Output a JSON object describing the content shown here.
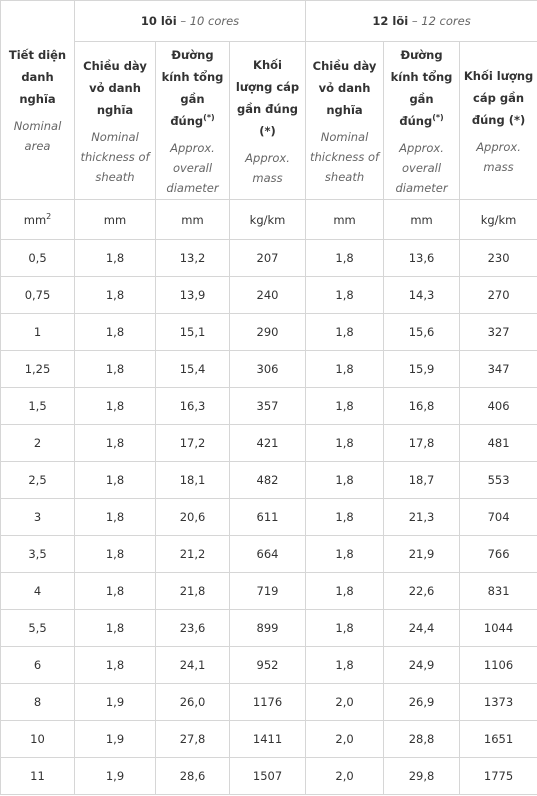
{
  "header": {
    "area": {
      "vi": "Tiết diện danh nghĩa",
      "en": "Nominal area"
    },
    "separator": "–",
    "groups": [
      {
        "title": "10 lõi",
        "subtitle": "10 cores",
        "columns": [
          {
            "vi": "Chiều dày vỏ danh nghĩa",
            "en": "Nominal thickness of sheath"
          },
          {
            "vi": "Đường kính tổng gần đúng",
            "note": "(*)",
            "en": "Approx. overall diameter"
          },
          {
            "vi": "Khối lượng cáp gần đúng (*)",
            "en": "Approx. mass"
          }
        ]
      },
      {
        "title": "12 lõi",
        "subtitle": "12 cores",
        "columns": [
          {
            "vi": "Chiều dày vỏ danh nghĩa",
            "en": "Nominal thickness of sheath"
          },
          {
            "vi": "Đường kính tổng gần đúng",
            "note": "(*)",
            "en": "Approx. overall diameter"
          },
          {
            "vi": "Khối lượng cáp gần đúng (*)",
            "en": "Approx. mass"
          }
        ]
      }
    ]
  },
  "units": {
    "area": {
      "base": "mm",
      "sup": "2"
    },
    "others": [
      "mm",
      "mm",
      "kg/km",
      "mm",
      "mm",
      "kg/km"
    ]
  },
  "table": {
    "rows": [
      [
        "0,5",
        "1,8",
        "13,2",
        "207",
        "1,8",
        "13,6",
        "230"
      ],
      [
        "0,75",
        "1,8",
        "13,9",
        "240",
        "1,8",
        "14,3",
        "270"
      ],
      [
        "1",
        "1,8",
        "15,1",
        "290",
        "1,8",
        "15,6",
        "327"
      ],
      [
        "1,25",
        "1,8",
        "15,4",
        "306",
        "1,8",
        "15,9",
        "347"
      ],
      [
        "1,5",
        "1,8",
        "16,3",
        "357",
        "1,8",
        "16,8",
        "406"
      ],
      [
        "2",
        "1,8",
        "17,2",
        "421",
        "1,8",
        "17,8",
        "481"
      ],
      [
        "2,5",
        "1,8",
        "18,1",
        "482",
        "1,8",
        "18,7",
        "553"
      ],
      [
        "3",
        "1,8",
        "20,6",
        "611",
        "1,8",
        "21,3",
        "704"
      ],
      [
        "3,5",
        "1,8",
        "21,2",
        "664",
        "1,8",
        "21,9",
        "766"
      ],
      [
        "4",
        "1,8",
        "21,8",
        "719",
        "1,8",
        "22,6",
        "831"
      ],
      [
        "5,5",
        "1,8",
        "23,6",
        "899",
        "1,8",
        "24,4",
        "1044"
      ],
      [
        "6",
        "1,8",
        "24,1",
        "952",
        "1,8",
        "24,9",
        "1106"
      ],
      [
        "8",
        "1,9",
        "26,0",
        "1176",
        "2,0",
        "26,9",
        "1373"
      ],
      [
        "10",
        "1,9",
        "27,8",
        "1411",
        "2,0",
        "28,8",
        "1651"
      ],
      [
        "11",
        "1,9",
        "28,6",
        "1507",
        "2,0",
        "29,8",
        "1775"
      ]
    ]
  }
}
